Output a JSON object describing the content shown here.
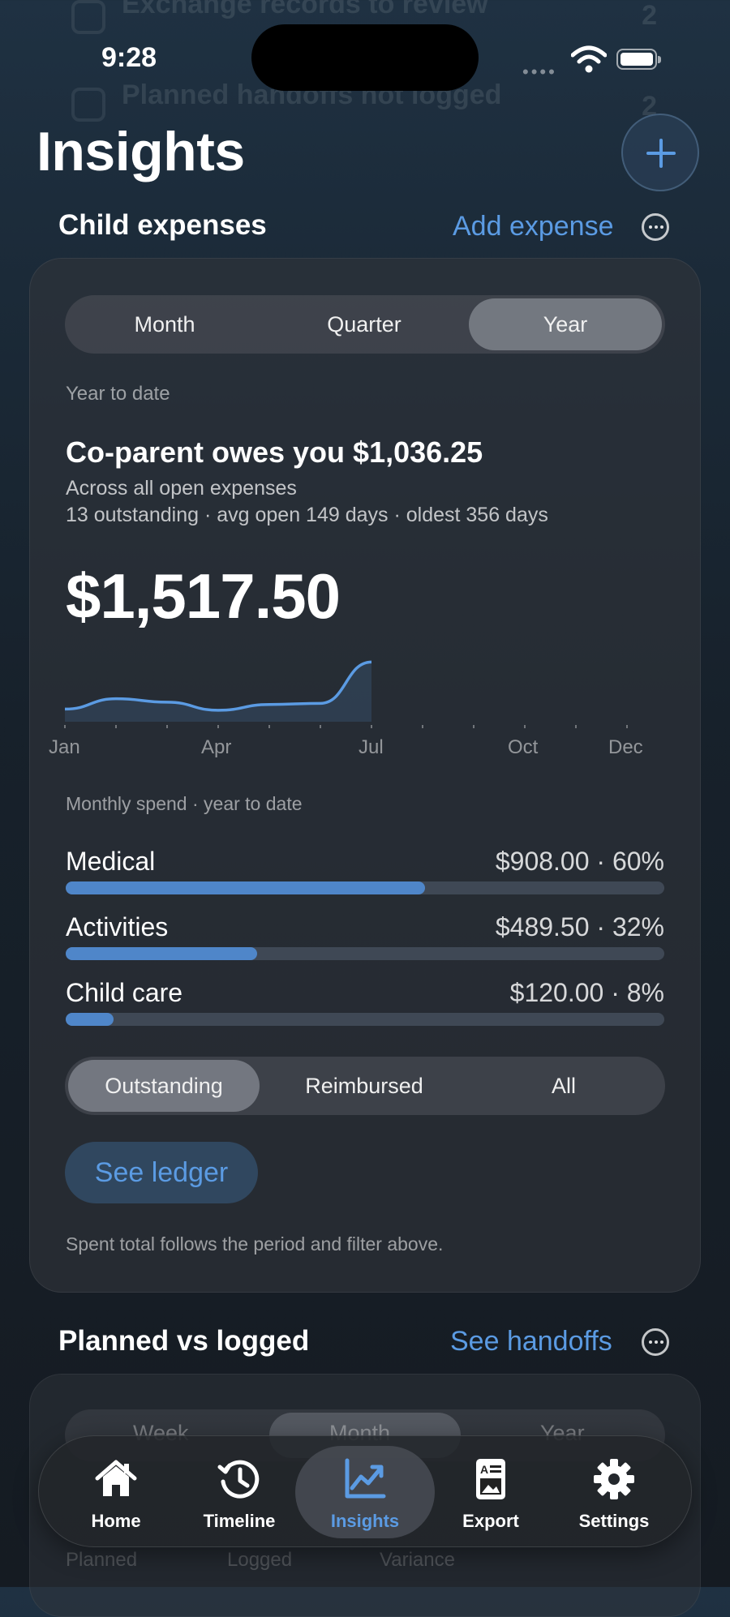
{
  "background_rows": [
    {
      "title": "Exchange records to review",
      "count": "2"
    },
    {
      "title": "Planned handoffs not logged",
      "count": "2"
    }
  ],
  "status_bar": {
    "time": "9:28"
  },
  "header": {
    "title": "Insights",
    "add_icon": "plus-icon"
  },
  "expenses": {
    "section_title": "Child expenses",
    "add_link": "Add expense",
    "periods": [
      "Month",
      "Quarter",
      "Year"
    ],
    "selected_period": "Year",
    "period_caption": "Year to date",
    "owes_headline": "Co-parent owes you $1,036.25",
    "owes_sub": "Across all open expenses",
    "stats": "13 outstanding · avg open 149 days · oldest 356 days",
    "total": "$1,517.50",
    "chart_caption": "Monthly spend · year to date",
    "categories": [
      {
        "name": "Medical",
        "value": "$908.00 · 60%",
        "pct": 60
      },
      {
        "name": "Activities",
        "value": "$489.50 · 32%",
        "pct": 32
      },
      {
        "name": "Child care",
        "value": "$120.00 · 8%",
        "pct": 8
      }
    ],
    "filters": [
      "Outstanding",
      "Reimbursed",
      "All"
    ],
    "selected_filter": "Outstanding",
    "ledger_button": "See ledger",
    "footnote": "Spent total follows the period and filter above."
  },
  "chart_data": {
    "type": "area",
    "title": "",
    "x": [
      "Jan",
      "Feb",
      "Mar",
      "Apr",
      "May",
      "Jun",
      "Jul"
    ],
    "values": [
      110,
      200,
      170,
      100,
      150,
      160,
      520
    ],
    "tick_labels": [
      "Jan",
      "Apr",
      "Jul",
      "Oct",
      "Dec"
    ],
    "ylim": [
      0,
      600
    ],
    "color": "#5b9be3"
  },
  "handoffs": {
    "section_title": "Planned vs logged",
    "link": "See handoffs",
    "periods": [
      "Week",
      "Month",
      "Year"
    ],
    "selected_period": "Month",
    "columns": [
      "Planned",
      "Logged",
      "Variance"
    ]
  },
  "tabbar": {
    "items": [
      {
        "label": "Home",
        "icon": "house-icon"
      },
      {
        "label": "Timeline",
        "icon": "clock-history-icon"
      },
      {
        "label": "Insights",
        "icon": "chart-icon"
      },
      {
        "label": "Export",
        "icon": "document-icon"
      },
      {
        "label": "Settings",
        "icon": "gear-icon"
      }
    ],
    "selected": "Insights"
  },
  "colors": {
    "accent": "#5b9be3",
    "bar": "#4f86c9"
  }
}
